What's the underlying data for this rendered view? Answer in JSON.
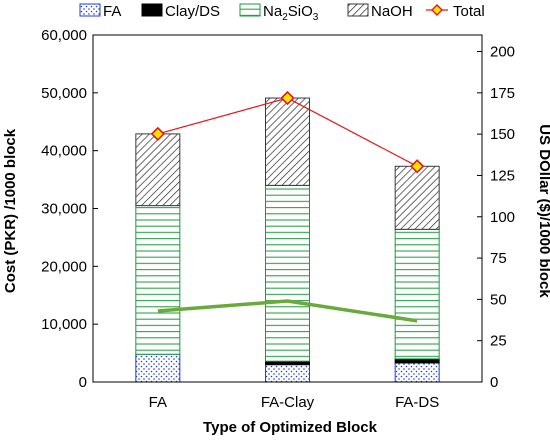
{
  "chart_data": {
    "type": "bar",
    "stacked": true,
    "categories": [
      "FA",
      "FA-Clay",
      "FA-DS"
    ],
    "series": [
      {
        "name": "FA",
        "values": [
          4800,
          3000,
          3300
        ],
        "color": "#1f3fd6",
        "pattern": "dots"
      },
      {
        "name": "Clay/DS",
        "values": [
          0,
          600,
          700
        ],
        "color": "#000000",
        "pattern": "solid"
      },
      {
        "name": "Na2SiO3",
        "values": [
          25700,
          30400,
          22400
        ],
        "color": "#1a9a3a",
        "pattern": "horizontal"
      },
      {
        "name": "NaOH",
        "values": [
          12400,
          15100,
          10900
        ],
        "color": "#3a3a3a",
        "pattern": "diagonal"
      }
    ],
    "total": {
      "name": "Total",
      "values": [
        42900,
        49100,
        37300
      ],
      "color": "#e8141b",
      "marker": "diamond",
      "marker_fill": "#ffe600"
    },
    "usd_line": {
      "values": [
        43,
        49,
        37
      ],
      "color": "#6aaa3a"
    },
    "xlabel": "Type of Optimized Block",
    "ylabel": "Cost (PKR) /1000 block",
    "y2label": "US DOllar ($)/1000 block",
    "ylim": [
      0,
      60000
    ],
    "y2lim": [
      0,
      210
    ],
    "yticks": [
      "0",
      "10,000",
      "20,000",
      "30,000",
      "40,000",
      "50,000",
      "60,000"
    ],
    "y2ticks": [
      "0",
      "25",
      "50",
      "75",
      "100",
      "125",
      "150",
      "175",
      "200"
    ],
    "legend_placement": "top"
  }
}
